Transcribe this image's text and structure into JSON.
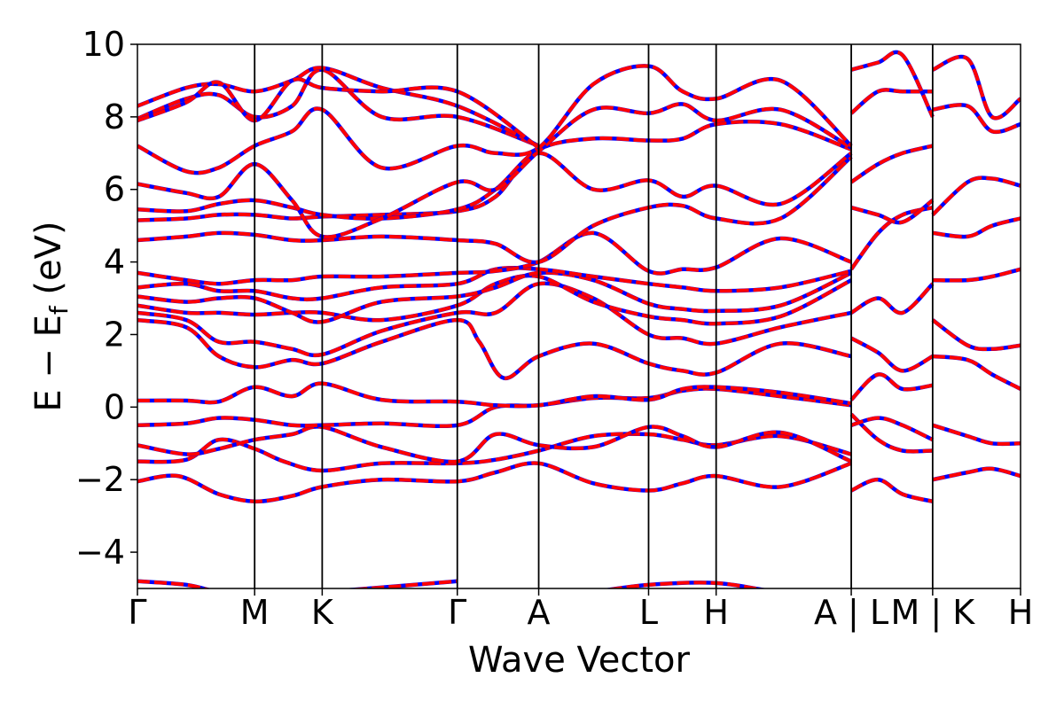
{
  "chart_data": {
    "type": "line",
    "xlabel": "Wave Vector",
    "ylabel": "E − E",
    "ylabel_sub": "f",
    "ylabel_unit": " (eV)",
    "ylim": [
      -5,
      10
    ],
    "yticks": [
      -4,
      -2,
      0,
      2,
      4,
      6,
      8,
      10
    ],
    "ytick_labels": [
      "−4",
      "−2",
      "0",
      "2",
      "4",
      "6",
      "8",
      "10"
    ],
    "xlim": [
      0,
      10.85
    ],
    "kpath": [
      {
        "label": "Γ",
        "x": 0.0
      },
      {
        "label": "M",
        "x": 1.44
      },
      {
        "label": "K",
        "x": 2.27
      },
      {
        "label": "Γ",
        "x": 3.93
      },
      {
        "label": "A",
        "x": 4.93
      },
      {
        "label": "L",
        "x": 6.28
      },
      {
        "label": "H",
        "x": 7.11
      },
      {
        "label": "A | L",
        "x": 8.77
      },
      {
        "label": "M | K",
        "x": 9.77
      },
      {
        "label": "H",
        "x": 10.85
      }
    ],
    "grid": false,
    "series_colors": {
      "dft": "#ff0000",
      "fit": "#0000ff"
    },
    "bands": [
      {
        "x": [
          0,
          0.5,
          1.0,
          1.44,
          1.9,
          2.27,
          3.0,
          3.93,
          4.4,
          4.93,
          5.6,
          6.28,
          6.7,
          7.11,
          7.9,
          8.77
        ],
        "y": [
          -2.05,
          -1.9,
          -2.4,
          -2.6,
          -2.45,
          -2.2,
          -2.0,
          -2.05,
          -1.8,
          -1.55,
          -2.1,
          -2.3,
          -2.1,
          -1.9,
          -2.2,
          -1.55
        ]
      },
      {
        "x": [
          0,
          0.6,
          1.0,
          1.44,
          1.8,
          2.27,
          3.0,
          3.93,
          4.4,
          4.93,
          5.6,
          6.28,
          6.7,
          7.11,
          7.9,
          8.77
        ],
        "y": [
          -1.5,
          -1.45,
          -0.9,
          -1.15,
          -1.5,
          -1.75,
          -1.55,
          -1.55,
          -1.45,
          -1.2,
          -0.8,
          -0.75,
          -0.9,
          -1.05,
          -0.8,
          -1.3
        ]
      },
      {
        "x": [
          0,
          0.6,
          1.0,
          1.44,
          1.9,
          2.27,
          3.0,
          3.93,
          4.4,
          4.93,
          5.6,
          6.28,
          6.7,
          7.11,
          7.9,
          8.77
        ],
        "y": [
          -1.05,
          -1.3,
          -1.15,
          -0.9,
          -0.75,
          -0.55,
          -1.1,
          -1.5,
          -0.75,
          -1.05,
          -1.1,
          -0.55,
          -0.8,
          -1.1,
          -0.7,
          -1.5
        ]
      },
      {
        "x": [
          0,
          0.6,
          1.0,
          1.44,
          1.9,
          2.27,
          3.0,
          3.93,
          4.4,
          4.93,
          5.6,
          6.28,
          6.7,
          7.11,
          7.9,
          8.77
        ],
        "y": [
          -0.5,
          -0.45,
          -0.3,
          -0.35,
          -0.5,
          -0.5,
          -0.45,
          -0.5,
          0.0,
          0.05,
          0.25,
          0.25,
          0.45,
          0.5,
          0.3,
          0.05
        ]
      },
      {
        "x": [
          0,
          0.6,
          1.0,
          1.44,
          1.9,
          2.27,
          3.0,
          3.93,
          4.4,
          4.93,
          5.6,
          6.28,
          6.7,
          7.11,
          7.9,
          8.77
        ],
        "y": [
          0.18,
          0.18,
          0.15,
          0.55,
          0.3,
          0.65,
          0.2,
          0.15,
          0.05,
          0.05,
          0.3,
          0.2,
          0.5,
          0.55,
          0.4,
          0.1
        ]
      },
      {
        "x": [
          0,
          0.6,
          1.0,
          1.44,
          1.9,
          2.27,
          3.0,
          3.93,
          4.2,
          4.5,
          4.93,
          5.6,
          6.28,
          6.7,
          7.11,
          7.9,
          8.77
        ],
        "y": [
          2.4,
          2.2,
          1.4,
          1.1,
          1.3,
          1.2,
          1.8,
          2.4,
          1.8,
          0.8,
          1.4,
          1.75,
          1.2,
          1.0,
          0.95,
          1.75,
          1.4
        ]
      },
      {
        "x": [
          0,
          0.6,
          1.0,
          1.44,
          1.9,
          2.27,
          3.0,
          3.93,
          4.4,
          4.93,
          5.6,
          6.28,
          6.7,
          7.11,
          7.9,
          8.77
        ],
        "y": [
          2.6,
          2.4,
          1.8,
          1.8,
          1.6,
          1.45,
          2.1,
          2.6,
          2.6,
          3.4,
          3.0,
          2.0,
          1.9,
          1.75,
          2.2,
          2.6
        ]
      },
      {
        "x": [
          0,
          0.6,
          1.0,
          1.44,
          1.9,
          2.27,
          3.0,
          3.93,
          4.4,
          4.93,
          5.6,
          6.28,
          6.7,
          7.11,
          7.9,
          8.77
        ],
        "y": [
          2.8,
          2.6,
          2.6,
          2.55,
          2.6,
          2.6,
          2.4,
          2.8,
          3.4,
          3.6,
          2.9,
          2.5,
          2.4,
          2.3,
          2.5,
          3.5
        ]
      },
      {
        "x": [
          0,
          0.6,
          1.0,
          1.44,
          1.9,
          2.27,
          3.0,
          3.93,
          4.4,
          4.93,
          5.6,
          6.28,
          6.7,
          7.11,
          7.9,
          8.77
        ],
        "y": [
          3.05,
          2.9,
          3.0,
          3.0,
          2.6,
          2.35,
          2.9,
          3.05,
          3.3,
          3.7,
          3.5,
          2.85,
          2.7,
          2.65,
          2.8,
          3.7
        ]
      },
      {
        "x": [
          0,
          0.6,
          1.0,
          1.44,
          1.9,
          2.27,
          3.0,
          3.93,
          4.4,
          4.93,
          5.6,
          6.28,
          6.7,
          7.11,
          7.9,
          8.77
        ],
        "y": [
          3.3,
          3.4,
          3.2,
          3.2,
          3.0,
          3.0,
          3.3,
          3.4,
          3.8,
          3.8,
          3.6,
          3.4,
          3.3,
          3.2,
          3.3,
          3.75
        ]
      },
      {
        "x": [
          0,
          0.6,
          1.0,
          1.44,
          1.9,
          2.27,
          3.0,
          3.93,
          4.4,
          4.93,
          5.6,
          6.28,
          6.7,
          7.11,
          7.9,
          8.77
        ],
        "y": [
          3.7,
          3.5,
          3.4,
          3.5,
          3.5,
          3.6,
          3.6,
          3.7,
          3.75,
          4.0,
          4.8,
          3.75,
          3.8,
          3.85,
          4.65,
          4.0
        ]
      },
      {
        "x": [
          0,
          0.6,
          1.0,
          1.44,
          1.9,
          2.27,
          3.0,
          3.93,
          4.4,
          4.93,
          5.6,
          6.28,
          6.7,
          7.11,
          7.9,
          8.77
        ],
        "y": [
          4.6,
          4.7,
          4.8,
          4.75,
          4.6,
          4.6,
          4.7,
          4.6,
          4.5,
          4.0,
          5.0,
          5.5,
          5.55,
          5.2,
          5.2,
          6.9
        ]
      },
      {
        "x": [
          0,
          0.6,
          1.0,
          1.44,
          1.9,
          2.27,
          3.0,
          3.93,
          4.4,
          4.93,
          5.6,
          6.28,
          6.7,
          7.11,
          7.9,
          8.77
        ],
        "y": [
          5.15,
          5.2,
          5.3,
          5.3,
          5.2,
          5.25,
          5.3,
          5.4,
          5.8,
          7.0,
          6.0,
          6.25,
          5.8,
          6.1,
          5.6,
          7.0
        ]
      },
      {
        "x": [
          0,
          0.6,
          1.0,
          1.44,
          1.9,
          2.27,
          3.0,
          3.93,
          4.4,
          4.93,
          5.6,
          6.28,
          6.7,
          7.11,
          7.9,
          8.77
        ],
        "y": [
          5.45,
          5.4,
          5.6,
          5.7,
          5.5,
          5.3,
          5.2,
          5.45,
          6.0,
          7.1,
          7.4,
          7.35,
          7.4,
          7.8,
          7.8,
          7.1
        ]
      },
      {
        "x": [
          0,
          0.6,
          1.0,
          1.44,
          1.9,
          2.27,
          3.0,
          3.93,
          4.4,
          4.93,
          5.6,
          6.28,
          6.7,
          7.11,
          7.9,
          8.77
        ],
        "y": [
          6.15,
          5.9,
          5.8,
          6.7,
          5.7,
          4.7,
          5.2,
          6.2,
          6.0,
          7.05,
          8.2,
          8.1,
          8.35,
          7.9,
          8.2,
          7.15
        ]
      },
      {
        "x": [
          0,
          0.6,
          1.0,
          1.44,
          1.9,
          2.27,
          3.0,
          3.93,
          4.4,
          4.93,
          5.6,
          6.28,
          6.7,
          7.11,
          7.9,
          8.77
        ],
        "y": [
          7.2,
          6.5,
          6.6,
          7.2,
          7.6,
          8.2,
          6.6,
          7.2,
          7.0,
          7.15,
          8.9,
          9.4,
          8.7,
          8.5,
          9.0,
          7.2
        ]
      },
      {
        "x": [
          0,
          0.6,
          1.0,
          1.44,
          1.9,
          2.27,
          3.0,
          3.93,
          4.93
        ],
        "y": [
          7.95,
          8.5,
          8.6,
          8.0,
          8.3,
          9.3,
          8.0,
          8.0,
          7.2
        ]
      },
      {
        "x": [
          0,
          0.6,
          1.0,
          1.44,
          1.9,
          2.27,
          3.0,
          3.93,
          4.93
        ],
        "y": [
          8.3,
          8.8,
          8.9,
          8.7,
          9.0,
          9.35,
          8.8,
          8.3,
          7.2
        ]
      },
      {
        "x": [
          0,
          0.6,
          1.0,
          1.44,
          1.9,
          2.27,
          3.0,
          3.93,
          4.93
        ],
        "y": [
          7.9,
          8.4,
          8.95,
          7.9,
          9.0,
          8.8,
          8.7,
          8.7,
          7.15
        ]
      },
      {
        "x": [
          0,
          0.6,
          1.0,
          1.44,
          2.27,
          3.93
        ],
        "y": [
          -4.8,
          -4.9,
          -5.1,
          -5.2,
          -5.1,
          -4.8
        ]
      },
      {
        "x": [
          5.6,
          6.28,
          7.11,
          7.9,
          8.77
        ],
        "y": [
          -5.1,
          -4.9,
          -4.85,
          -5.1,
          -5.2
        ]
      },
      {
        "x": [
          8.77,
          9.1,
          9.4,
          9.77
        ],
        "y": [
          -2.3,
          -2.0,
          -2.4,
          -2.6
        ]
      },
      {
        "x": [
          8.77,
          9.1,
          9.4,
          9.77
        ],
        "y": [
          -0.2,
          -0.9,
          -1.2,
          -1.2
        ]
      },
      {
        "x": [
          8.77,
          9.1,
          9.4,
          9.77
        ],
        "y": [
          -0.5,
          -0.3,
          -0.5,
          -0.9
        ]
      },
      {
        "x": [
          8.77,
          9.1,
          9.4,
          9.77
        ],
        "y": [
          0.2,
          0.9,
          0.5,
          0.6
        ]
      },
      {
        "x": [
          8.77,
          9.1,
          9.4,
          9.77
        ],
        "y": [
          1.9,
          1.5,
          1.0,
          1.4
        ]
      },
      {
        "x": [
          8.77,
          9.1,
          9.4,
          9.77
        ],
        "y": [
          2.6,
          3.0,
          2.6,
          3.4
        ]
      },
      {
        "x": [
          8.77,
          9.1,
          9.4,
          9.77
        ],
        "y": [
          3.8,
          4.8,
          5.3,
          5.5
        ]
      },
      {
        "x": [
          8.77,
          9.1,
          9.4,
          9.77
        ],
        "y": [
          5.5,
          5.3,
          5.1,
          5.7
        ]
      },
      {
        "x": [
          8.77,
          9.1,
          9.4,
          9.77
        ],
        "y": [
          6.2,
          6.7,
          7.0,
          7.2
        ]
      },
      {
        "x": [
          8.77,
          9.1,
          9.4,
          9.77
        ],
        "y": [
          8.1,
          8.7,
          8.7,
          8.7
        ]
      },
      {
        "x": [
          8.77,
          9.1,
          9.4,
          9.77
        ],
        "y": [
          9.3,
          9.5,
          9.7,
          8.0
        ]
      },
      {
        "x": [
          9.77,
          10.2,
          10.5,
          10.85
        ],
        "y": [
          -2.0,
          -1.8,
          -1.7,
          -1.9
        ]
      },
      {
        "x": [
          9.77,
          10.2,
          10.5,
          10.85
        ],
        "y": [
          -0.5,
          -0.8,
          -1.0,
          -1.0
        ]
      },
      {
        "x": [
          9.77,
          10.2,
          10.5,
          10.85
        ],
        "y": [
          1.4,
          1.3,
          0.9,
          0.5
        ]
      },
      {
        "x": [
          9.77,
          10.2,
          10.5,
          10.85
        ],
        "y": [
          2.4,
          1.7,
          1.6,
          1.7
        ]
      },
      {
        "x": [
          9.77,
          10.2,
          10.5,
          10.85
        ],
        "y": [
          3.5,
          3.5,
          3.6,
          3.8
        ]
      },
      {
        "x": [
          9.77,
          10.2,
          10.5,
          10.85
        ],
        "y": [
          4.8,
          4.7,
          5.0,
          5.2
        ]
      },
      {
        "x": [
          9.77,
          10.2,
          10.5,
          10.85
        ],
        "y": [
          5.3,
          6.2,
          6.3,
          6.1
        ]
      },
      {
        "x": [
          9.77,
          10.2,
          10.5,
          10.85
        ],
        "y": [
          8.2,
          8.3,
          7.6,
          7.8
        ]
      },
      {
        "x": [
          9.77,
          10.2,
          10.5,
          10.85
        ],
        "y": [
          9.3,
          9.6,
          8.0,
          8.5
        ]
      }
    ]
  }
}
